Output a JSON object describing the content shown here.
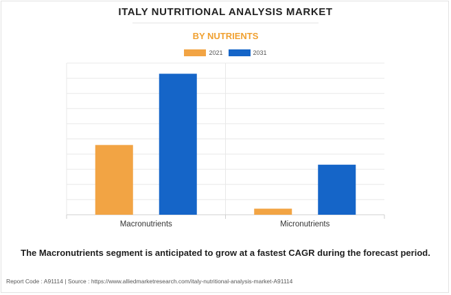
{
  "chart_data": {
    "type": "bar",
    "title": "ITALY NUTRITIONAL ANALYSIS MARKET",
    "subtitle": "BY NUTRIENTS",
    "categories": [
      "Macronutrients",
      "Micronutrients"
    ],
    "series": [
      {
        "name": "2021",
        "color": "#f2a444",
        "values": [
          4.6,
          0.4
        ]
      },
      {
        "name": "2031",
        "color": "#1565c8",
        "values": [
          9.3,
          3.3
        ]
      }
    ],
    "ylim": [
      0,
      10
    ],
    "grid": true,
    "legend": "top-center",
    "xlabel": "",
    "ylabel": ""
  },
  "caption": "The Macronutrients segment is anticipated to grow at a fastest CAGR during the forecast period.",
  "footer": {
    "report_code": "Report Code : A91114",
    "separator": "|",
    "source": "Source : https://www.alliedmarketresearch.com/italy-nutritional-analysis-market-A91114"
  }
}
